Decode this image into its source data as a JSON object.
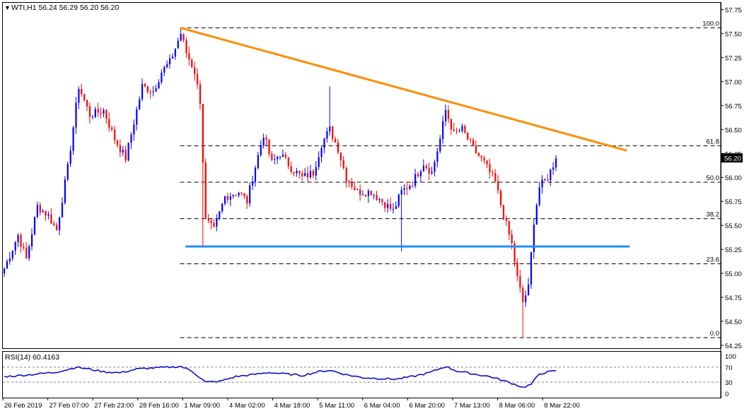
{
  "header": {
    "symbol_line": "WTI,H1  56.24 56.29 56.20 56.20",
    "rsi_label": "RSI(14) 60.4163"
  },
  "colors": {
    "bull": "#0000ff",
    "bear": "#ff0000",
    "trendline": "#ff8c00",
    "support": "#1e90ff",
    "fib": "#000000",
    "rsi_line": "#0000cd",
    "background": "#ffffff",
    "price_tag_bg": "#000000",
    "price_tag_text": "#ffffff"
  },
  "chart_data": [
    {
      "type": "candlestick",
      "title": "WTI,H1",
      "ohlc_header": {
        "open": 56.24,
        "high": 56.29,
        "low": 56.2,
        "close": 56.2
      },
      "ylim": [
        54.22,
        57.82
      ],
      "y_ticks": [
        "57.75",
        "57.50",
        "57.25",
        "57.00",
        "56.75",
        "56.50",
        "56.25",
        "56.00",
        "55.75",
        "55.50",
        "55.25",
        "55.00",
        "54.75",
        "54.50",
        "54.25"
      ],
      "x_ticks": [
        "26 Feb 2019",
        "27 Feb 07:00",
        "27 Feb 23:00",
        "28 Feb 16:00",
        "1 Mar 09:00",
        "4 Mar 02:00",
        "4 Mar 18:00",
        "5 Mar 11:00",
        "6 Mar 04:00",
        "6 Mar 20:00",
        "7 Mar 13:00",
        "8 Mar 06:00",
        "8 Mar 22:00"
      ],
      "current_price": "56.20",
      "fibonacci": [
        {
          "label": "100.0",
          "value": 57.56
        },
        {
          "label": "61.8",
          "value": 56.33
        },
        {
          "label": "50.0",
          "value": 55.95
        },
        {
          "label": "38.2",
          "value": 55.57
        },
        {
          "label": "23.6",
          "value": 55.1
        },
        {
          "label": "0.0",
          "value": 54.33
        }
      ],
      "trendline": {
        "from": {
          "bar": 64,
          "price": 57.56
        },
        "to": {
          "bar": 226,
          "price": 56.28
        }
      },
      "support_line": {
        "from_bar": 66,
        "to_bar": 227,
        "price": 55.28
      },
      "anchors": [
        {
          "bar": 0,
          "price": 55.05
        },
        {
          "bar": 5,
          "price": 55.4
        },
        {
          "bar": 8,
          "price": 55.15
        },
        {
          "bar": 12,
          "price": 55.7
        },
        {
          "bar": 16,
          "price": 55.6
        },
        {
          "bar": 19,
          "price": 55.45
        },
        {
          "bar": 23,
          "price": 56.1
        },
        {
          "bar": 27,
          "price": 56.95
        },
        {
          "bar": 31,
          "price": 56.65
        },
        {
          "bar": 36,
          "price": 56.7
        },
        {
          "bar": 40,
          "price": 56.4
        },
        {
          "bar": 44,
          "price": 56.2
        },
        {
          "bar": 50,
          "price": 56.95
        },
        {
          "bar": 54,
          "price": 56.9
        },
        {
          "bar": 57,
          "price": 57.1
        },
        {
          "bar": 60,
          "price": 57.2
        },
        {
          "bar": 64,
          "price": 57.5
        },
        {
          "bar": 66,
          "price": 57.3
        },
        {
          "bar": 69,
          "price": 57.1
        },
        {
          "bar": 71,
          "price": 56.8
        },
        {
          "bar": 73,
          "price": 55.55
        },
        {
          "bar": 76,
          "price": 55.45
        },
        {
          "bar": 80,
          "price": 55.8
        },
        {
          "bar": 85,
          "price": 55.85
        },
        {
          "bar": 88,
          "price": 55.75
        },
        {
          "bar": 90,
          "price": 56.0
        },
        {
          "bar": 94,
          "price": 56.45
        },
        {
          "bar": 97,
          "price": 56.15
        },
        {
          "bar": 100,
          "price": 56.25
        },
        {
          "bar": 104,
          "price": 56.1
        },
        {
          "bar": 108,
          "price": 56.0
        },
        {
          "bar": 112,
          "price": 56.05
        },
        {
          "bar": 115,
          "price": 56.35
        },
        {
          "bar": 118,
          "price": 56.5
        },
        {
          "bar": 121,
          "price": 56.3
        },
        {
          "bar": 124,
          "price": 56.0
        },
        {
          "bar": 128,
          "price": 55.85
        },
        {
          "bar": 133,
          "price": 55.85
        },
        {
          "bar": 137,
          "price": 55.75
        },
        {
          "bar": 141,
          "price": 55.65
        },
        {
          "bar": 144,
          "price": 55.85
        },
        {
          "bar": 148,
          "price": 55.95
        },
        {
          "bar": 152,
          "price": 56.15
        },
        {
          "bar": 155,
          "price": 56.05
        },
        {
          "bar": 158,
          "price": 56.4
        },
        {
          "bar": 160,
          "price": 56.7
        },
        {
          "bar": 163,
          "price": 56.45
        },
        {
          "bar": 166,
          "price": 56.5
        },
        {
          "bar": 170,
          "price": 56.3
        },
        {
          "bar": 174,
          "price": 56.15
        },
        {
          "bar": 178,
          "price": 55.95
        },
        {
          "bar": 181,
          "price": 55.6
        },
        {
          "bar": 184,
          "price": 55.3
        },
        {
          "bar": 186,
          "price": 54.95
        },
        {
          "bar": 188,
          "price": 54.7
        },
        {
          "bar": 190,
          "price": 54.85
        },
        {
          "bar": 192,
          "price": 55.55
        },
        {
          "bar": 194,
          "price": 55.9
        },
        {
          "bar": 197,
          "price": 56.0
        },
        {
          "bar": 200,
          "price": 56.2
        }
      ]
    },
    {
      "type": "line",
      "title": "RSI(14)",
      "value": 60.4163,
      "ylim": [
        0,
        100
      ],
      "y_ticks": [
        "100",
        "70",
        "30",
        "0"
      ],
      "levels": [
        70,
        30
      ],
      "series_points": [
        {
          "bar": 0,
          "value": 45
        },
        {
          "bar": 6,
          "value": 48
        },
        {
          "bar": 12,
          "value": 52
        },
        {
          "bar": 18,
          "value": 56
        },
        {
          "bar": 22,
          "value": 62
        },
        {
          "bar": 26,
          "value": 70
        },
        {
          "bar": 30,
          "value": 66
        },
        {
          "bar": 36,
          "value": 58
        },
        {
          "bar": 42,
          "value": 55
        },
        {
          "bar": 48,
          "value": 65
        },
        {
          "bar": 54,
          "value": 68
        },
        {
          "bar": 60,
          "value": 70
        },
        {
          "bar": 64,
          "value": 72
        },
        {
          "bar": 68,
          "value": 60
        },
        {
          "bar": 73,
          "value": 30
        },
        {
          "bar": 78,
          "value": 32
        },
        {
          "bar": 84,
          "value": 45
        },
        {
          "bar": 90,
          "value": 50
        },
        {
          "bar": 96,
          "value": 56
        },
        {
          "bar": 102,
          "value": 52
        },
        {
          "bar": 108,
          "value": 48
        },
        {
          "bar": 114,
          "value": 58
        },
        {
          "bar": 118,
          "value": 62
        },
        {
          "bar": 124,
          "value": 50
        },
        {
          "bar": 130,
          "value": 42
        },
        {
          "bar": 136,
          "value": 40
        },
        {
          "bar": 142,
          "value": 38
        },
        {
          "bar": 148,
          "value": 45
        },
        {
          "bar": 154,
          "value": 55
        },
        {
          "bar": 160,
          "value": 72
        },
        {
          "bar": 164,
          "value": 60
        },
        {
          "bar": 170,
          "value": 52
        },
        {
          "bar": 176,
          "value": 45
        },
        {
          "bar": 182,
          "value": 32
        },
        {
          "bar": 186,
          "value": 22
        },
        {
          "bar": 188,
          "value": 16
        },
        {
          "bar": 191,
          "value": 24
        },
        {
          "bar": 194,
          "value": 52
        },
        {
          "bar": 197,
          "value": 57
        },
        {
          "bar": 200,
          "value": 60.4
        }
      ]
    }
  ]
}
